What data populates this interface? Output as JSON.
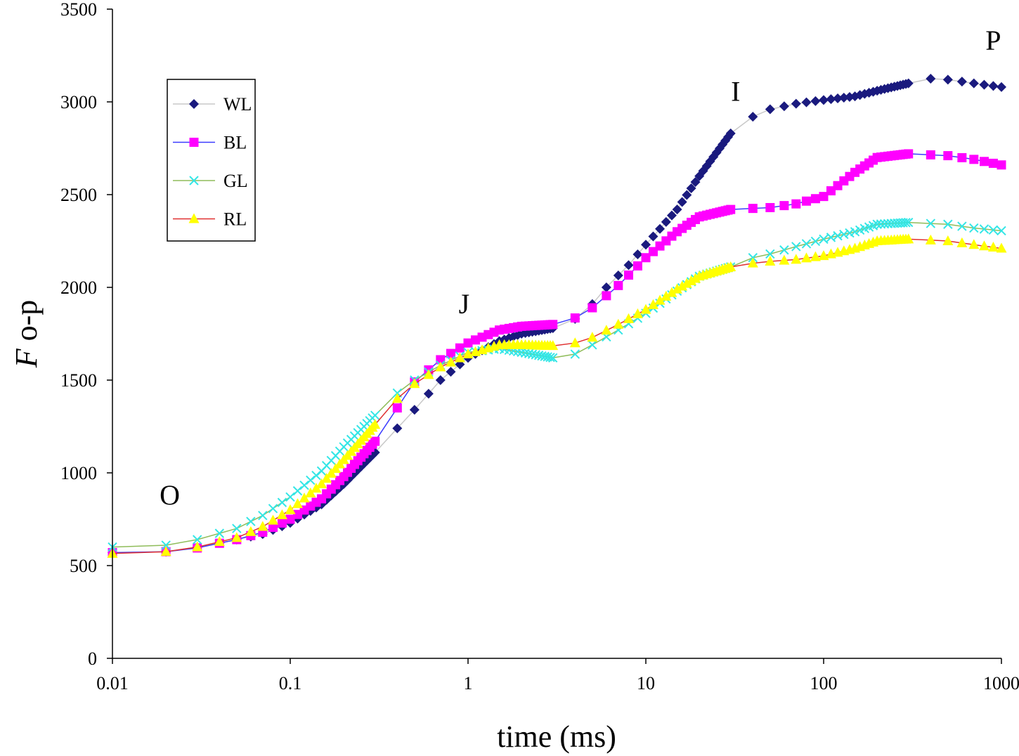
{
  "chart_data": {
    "type": "line",
    "title": "",
    "xlabel": "time (ms)",
    "ylabel_italic": "F",
    "ylabel_rest": " o-p",
    "xscale": "log",
    "xlim": [
      0.01,
      1000
    ],
    "ylim": [
      0,
      3500
    ],
    "xticks": [
      {
        "value": 0.01,
        "label": "0.01"
      },
      {
        "value": 0.1,
        "label": "0.1"
      },
      {
        "value": 1,
        "label": "1"
      },
      {
        "value": 10,
        "label": "10"
      },
      {
        "value": 100,
        "label": "100"
      },
      {
        "value": 1000,
        "label": "1000"
      }
    ],
    "yticks": [
      {
        "value": 0,
        "label": "0"
      },
      {
        "value": 500,
        "label": "500"
      },
      {
        "value": 1000,
        "label": "1000"
      },
      {
        "value": 1500,
        "label": "1500"
      },
      {
        "value": 2000,
        "label": "2000"
      },
      {
        "value": 2500,
        "label": "2500"
      },
      {
        "value": 3000,
        "label": "3000"
      },
      {
        "value": 3500,
        "label": "3500"
      }
    ],
    "grid": false,
    "legend_position": "upper-left",
    "annotations": [
      {
        "text": "O",
        "x": 0.021,
        "y": 830
      },
      {
        "text": "J",
        "x": 0.95,
        "y": 1860
      },
      {
        "text": "I",
        "x": 32,
        "y": 3005
      },
      {
        "text": "P",
        "x": 900,
        "y": 3280
      }
    ],
    "series": [
      {
        "name": "WL",
        "marker": "diamond",
        "marker_color": "#1a1a7e",
        "line_color": "#c8c8c8",
        "anchors": [
          [
            0.01,
            570
          ],
          [
            0.02,
            575
          ],
          [
            0.03,
            600
          ],
          [
            0.05,
            640
          ],
          [
            0.07,
            670
          ],
          [
            0.1,
            730
          ],
          [
            0.15,
            830
          ],
          [
            0.2,
            940
          ],
          [
            0.3,
            1110
          ],
          [
            0.4,
            1240
          ],
          [
            0.5,
            1340
          ],
          [
            0.7,
            1500
          ],
          [
            1,
            1620
          ],
          [
            1.5,
            1710
          ],
          [
            2,
            1750
          ],
          [
            3,
            1780
          ],
          [
            4,
            1830
          ],
          [
            5,
            1910
          ],
          [
            6,
            2000
          ],
          [
            8,
            2120
          ],
          [
            10,
            2230
          ],
          [
            15,
            2420
          ],
          [
            20,
            2600
          ],
          [
            30,
            2830
          ],
          [
            40,
            2920
          ],
          [
            50,
            2960
          ],
          [
            70,
            2990
          ],
          [
            100,
            3010
          ],
          [
            150,
            3030
          ],
          [
            200,
            3060
          ],
          [
            300,
            3100
          ],
          [
            400,
            3125
          ],
          [
            500,
            3120
          ],
          [
            700,
            3100
          ],
          [
            1000,
            3080
          ]
        ]
      },
      {
        "name": "BL",
        "marker": "square",
        "marker_color": "#ff00ff",
        "line_color": "#3b3bff",
        "anchors": [
          [
            0.01,
            570
          ],
          [
            0.02,
            575
          ],
          [
            0.03,
            595
          ],
          [
            0.05,
            640
          ],
          [
            0.07,
            680
          ],
          [
            0.1,
            750
          ],
          [
            0.15,
            860
          ],
          [
            0.2,
            980
          ],
          [
            0.3,
            1170
          ],
          [
            0.4,
            1350
          ],
          [
            0.5,
            1490
          ],
          [
            0.7,
            1610
          ],
          [
            1,
            1700
          ],
          [
            1.5,
            1770
          ],
          [
            2,
            1790
          ],
          [
            3,
            1800
          ],
          [
            4,
            1835
          ],
          [
            5,
            1890
          ],
          [
            7,
            2010
          ],
          [
            10,
            2160
          ],
          [
            15,
            2300
          ],
          [
            20,
            2380
          ],
          [
            30,
            2420
          ],
          [
            50,
            2430
          ],
          [
            70,
            2450
          ],
          [
            100,
            2490
          ],
          [
            150,
            2620
          ],
          [
            200,
            2700
          ],
          [
            300,
            2720
          ],
          [
            500,
            2710
          ],
          [
            700,
            2690
          ],
          [
            1000,
            2660
          ]
        ]
      },
      {
        "name": "GL",
        "marker": "x",
        "marker_color": "#33e6e6",
        "line_color": "#8fbc5a",
        "anchors": [
          [
            0.01,
            600
          ],
          [
            0.02,
            610
          ],
          [
            0.03,
            640
          ],
          [
            0.05,
            700
          ],
          [
            0.07,
            770
          ],
          [
            0.1,
            870
          ],
          [
            0.15,
            1010
          ],
          [
            0.2,
            1140
          ],
          [
            0.3,
            1310
          ],
          [
            0.4,
            1430
          ],
          [
            0.5,
            1500
          ],
          [
            0.7,
            1580
          ],
          [
            1,
            1650
          ],
          [
            1.5,
            1670
          ],
          [
            2,
            1650
          ],
          [
            3,
            1620
          ],
          [
            4,
            1640
          ],
          [
            5,
            1690
          ],
          [
            7,
            1770
          ],
          [
            10,
            1860
          ],
          [
            15,
            1980
          ],
          [
            20,
            2060
          ],
          [
            30,
            2110
          ],
          [
            40,
            2160
          ],
          [
            50,
            2180
          ],
          [
            70,
            2220
          ],
          [
            100,
            2260
          ],
          [
            150,
            2300
          ],
          [
            200,
            2340
          ],
          [
            300,
            2350
          ],
          [
            500,
            2340
          ],
          [
            700,
            2320
          ],
          [
            1000,
            2305
          ]
        ]
      },
      {
        "name": "RL",
        "marker": "triangle",
        "marker_color": "#ffff00",
        "line_color": "#e03030",
        "anchors": [
          [
            0.01,
            565
          ],
          [
            0.02,
            575
          ],
          [
            0.03,
            600
          ],
          [
            0.05,
            650
          ],
          [
            0.07,
            710
          ],
          [
            0.1,
            800
          ],
          [
            0.15,
            940
          ],
          [
            0.2,
            1070
          ],
          [
            0.3,
            1260
          ],
          [
            0.4,
            1400
          ],
          [
            0.5,
            1480
          ],
          [
            0.7,
            1570
          ],
          [
            1,
            1640
          ],
          [
            1.5,
            1690
          ],
          [
            2,
            1690
          ],
          [
            3,
            1685
          ],
          [
            4,
            1700
          ],
          [
            5,
            1730
          ],
          [
            7,
            1800
          ],
          [
            10,
            1880
          ],
          [
            15,
            1990
          ],
          [
            20,
            2060
          ],
          [
            30,
            2110
          ],
          [
            40,
            2130
          ],
          [
            50,
            2140
          ],
          [
            70,
            2150
          ],
          [
            100,
            2170
          ],
          [
            150,
            2210
          ],
          [
            200,
            2250
          ],
          [
            300,
            2260
          ],
          [
            500,
            2250
          ],
          [
            700,
            2230
          ],
          [
            1000,
            2210
          ]
        ]
      }
    ]
  }
}
